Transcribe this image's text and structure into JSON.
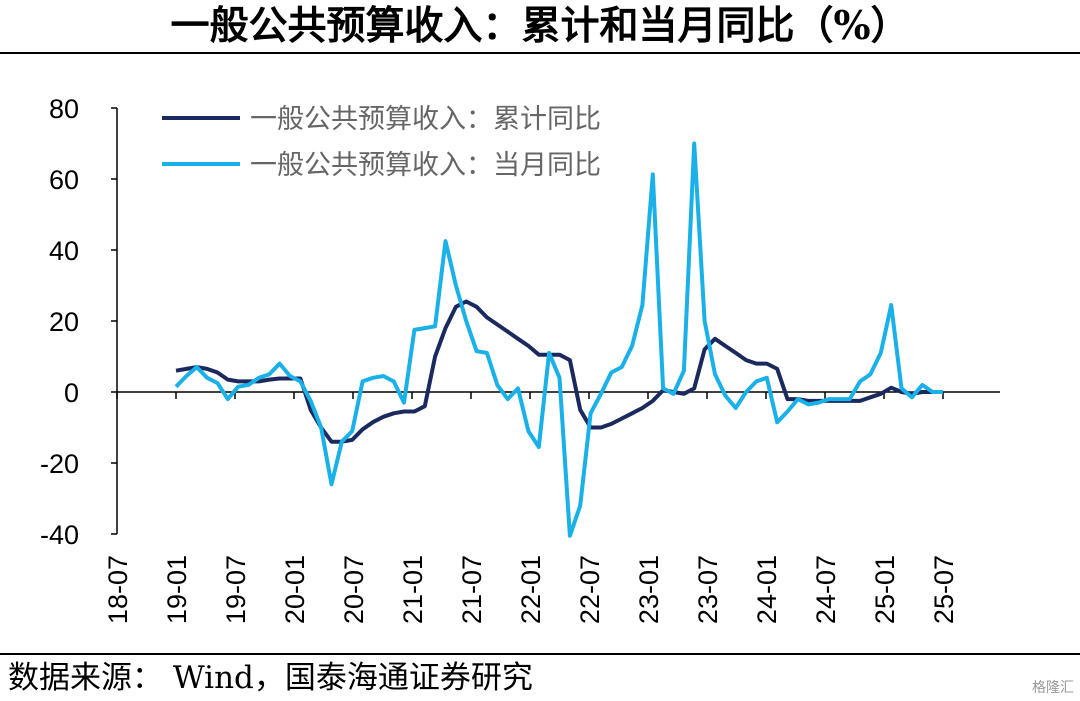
{
  "title": "一般公共预算收入：累计和当月同比（%）",
  "source": "数据来源： Wind，国泰海通证券研究",
  "watermark": "格隆汇",
  "chart_data": {
    "type": "line",
    "title": "一般公共预算收入：累计和当月同比（%）",
    "xlabel": "",
    "ylabel": "",
    "ylim": [
      -40,
      80
    ],
    "yticks": [
      -40,
      -20,
      0,
      20,
      40,
      60,
      80
    ],
    "xtick_labels": [
      "18-07",
      "19-01",
      "19-07",
      "20-01",
      "20-07",
      "21-01",
      "21-07",
      "22-01",
      "22-07",
      "23-01",
      "23-07",
      "24-01",
      "24-07",
      "25-01",
      "25-07"
    ],
    "x_start": "19-01",
    "x_end": "25-07",
    "legend_position": "top-left",
    "grid": false,
    "series": [
      {
        "name": "一般公共预算收入：累计同比",
        "color": "#1b2a5e",
        "values": [
          6,
          6.5,
          7,
          6.5,
          5.5,
          3.5,
          3,
          3,
          3,
          3.5,
          3.8,
          3.8,
          3.8,
          -5,
          -10,
          -14,
          -14,
          -13.5,
          -10.5,
          -8.5,
          -7,
          -6,
          -5.5,
          -5.5,
          -4,
          10,
          18,
          24,
          25.5,
          24,
          21,
          19,
          17,
          15,
          13,
          10.5,
          10.5,
          10.5,
          9,
          -5,
          -10,
          -10,
          -9,
          -7.5,
          -6,
          -4.5,
          -2.5,
          0.5,
          0,
          -0.5,
          1,
          12,
          15,
          13,
          11,
          9,
          8,
          8,
          6.5,
          -2,
          -2,
          -2.5,
          -2.5,
          -2.5,
          -2.5,
          -2.5,
          -2.5,
          -1.5,
          -0.5,
          1.2,
          0,
          -0.5,
          0,
          0,
          0
        ]
      },
      {
        "name": "一般公共预算收入：当月同比",
        "color": "#1ab0e8",
        "values": [
          1.5,
          4.5,
          7,
          4,
          2.5,
          -2,
          1.5,
          2,
          4,
          5,
          8,
          4.5,
          3,
          -2.5,
          -10,
          -26,
          -14,
          -11,
          3,
          4,
          4.5,
          3,
          -3,
          17.5,
          18,
          18.5,
          42.5,
          30,
          20,
          11.5,
          11,
          2,
          -2,
          1,
          -11,
          -15.5,
          11,
          4,
          -40.5,
          -32,
          -6,
          -0.5,
          5.5,
          7,
          13,
          24.5,
          61.3,
          1,
          -0.5,
          6,
          70,
          20,
          5,
          -1,
          -4.5,
          0,
          3,
          4,
          -8.5,
          -5.5,
          -2,
          -3.5,
          -3,
          -2,
          -2,
          -2,
          3,
          5,
          11,
          24.5,
          1,
          -1.5,
          2,
          0,
          0
        ]
      }
    ]
  }
}
